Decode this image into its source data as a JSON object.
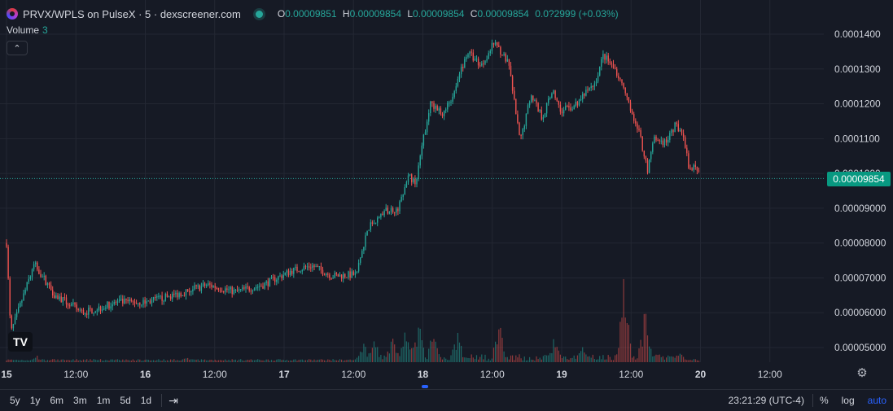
{
  "header": {
    "title": "PRVX/WPLS on PulseX · 5 · dexscreener.com",
    "ohlc": [
      {
        "key": "O",
        "value": "0.00009851"
      },
      {
        "key": "H",
        "value": "0.00009854"
      },
      {
        "key": "L",
        "value": "0.00009854"
      },
      {
        "key": "C",
        "value": "0.00009854"
      }
    ],
    "change": "0.0?2999 (+0.03%)",
    "volume_label": "Volume",
    "volume_value": "3",
    "collapse_glyph": "⌃",
    "status_color": "#26a69a"
  },
  "watermark": "TV",
  "price_tag": "0.00009854",
  "settings_icon": "gear-icon",
  "toolbar": {
    "ranges": [
      "5y",
      "1y",
      "6m",
      "3m",
      "1m",
      "5d",
      "1d"
    ],
    "clock": "23:21:29 (UTC-4)",
    "percent": "%",
    "log": "log",
    "auto": "auto"
  },
  "chart_data": {
    "type": "candlestick",
    "up_color": "#26a69a",
    "down_color": "#ef5350",
    "y_ticks": [
      "0.0001400",
      "0.0001300",
      "0.0001200",
      "0.0001100",
      "0.0001000",
      "0.00009000",
      "0.00008000",
      "0.00007000",
      "0.00006000",
      "0.00005000"
    ],
    "ylim": [
      4.65e-05,
      0.000143
    ],
    "last_price": 9.854e-05,
    "x_ticks": [
      "15",
      "12:00",
      "16",
      "12:00",
      "17",
      "12:00",
      "18",
      "12:00",
      "19",
      "12:00",
      "20",
      "12:00"
    ],
    "price_path": [
      {
        "t": 0.0,
        "p": 8e-05
      },
      {
        "t": 0.03,
        "p": 5.4e-05
      },
      {
        "t": 0.08,
        "p": 6e-05
      },
      {
        "t": 0.2,
        "p": 7.4e-05
      },
      {
        "t": 0.35,
        "p": 6.5e-05
      },
      {
        "t": 0.55,
        "p": 6e-05
      },
      {
        "t": 0.8,
        "p": 6.3e-05
      },
      {
        "t": 1.0,
        "p": 6.3e-05
      },
      {
        "t": 1.2,
        "p": 6.5e-05
      },
      {
        "t": 1.45,
        "p": 6.8e-05
      },
      {
        "t": 1.65,
        "p": 6.6e-05
      },
      {
        "t": 1.85,
        "p": 6.8e-05
      },
      {
        "t": 2.05,
        "p": 7.2e-05
      },
      {
        "t": 2.2,
        "p": 7.35e-05
      },
      {
        "t": 2.35,
        "p": 7.05e-05
      },
      {
        "t": 2.52,
        "p": 7.1e-05
      },
      {
        "t": 2.6,
        "p": 8.4e-05
      },
      {
        "t": 2.72,
        "p": 8.9e-05
      },
      {
        "t": 2.82,
        "p": 9e-05
      },
      {
        "t": 2.9,
        "p": 9.9e-05
      },
      {
        "t": 2.95,
        "p": 9.7e-05
      },
      {
        "t": 3.0,
        "p": 0.000109
      },
      {
        "t": 3.05,
        "p": 0.00012
      },
      {
        "t": 3.15,
        "p": 0.000117
      },
      {
        "t": 3.22,
        "p": 0.000123
      },
      {
        "t": 3.32,
        "p": 0.000135
      },
      {
        "t": 3.42,
        "p": 0.000131
      },
      {
        "t": 3.52,
        "p": 0.000138
      },
      {
        "t": 3.62,
        "p": 0.000131
      },
      {
        "t": 3.7,
        "p": 0.000109
      },
      {
        "t": 3.78,
        "p": 0.000123
      },
      {
        "t": 3.86,
        "p": 0.000116
      },
      {
        "t": 3.93,
        "p": 0.000124
      },
      {
        "t": 4.0,
        "p": 0.000118
      },
      {
        "t": 4.08,
        "p": 0.000119
      },
      {
        "t": 4.15,
        "p": 0.000122
      },
      {
        "t": 4.24,
        "p": 0.000126
      },
      {
        "t": 4.3,
        "p": 0.000134
      },
      {
        "t": 4.4,
        "p": 0.000129
      },
      {
        "t": 4.48,
        "p": 0.00012
      },
      {
        "t": 4.55,
        "p": 0.000113
      },
      {
        "t": 4.62,
        "p": 0.000101
      },
      {
        "t": 4.66,
        "p": 0.00011
      },
      {
        "t": 4.75,
        "p": 0.000109
      },
      {
        "t": 4.82,
        "p": 0.000114
      },
      {
        "t": 4.87,
        "p": 0.000112
      },
      {
        "t": 4.92,
        "p": 0.000101
      },
      {
        "t": 4.97,
        "p": 0.000102
      },
      {
        "t": 5.0,
        "p": 9.85e-05
      }
    ],
    "volume_peaks": [
      {
        "t": 2.57,
        "v": 0.25
      },
      {
        "t": 2.65,
        "v": 0.3
      },
      {
        "t": 2.78,
        "v": 0.35
      },
      {
        "t": 2.88,
        "v": 0.45
      },
      {
        "t": 2.97,
        "v": 0.55
      },
      {
        "t": 3.08,
        "v": 0.42
      },
      {
        "t": 3.25,
        "v": 0.38
      },
      {
        "t": 3.55,
        "v": 0.48
      },
      {
        "t": 3.95,
        "v": 0.32
      },
      {
        "t": 4.15,
        "v": 0.22
      },
      {
        "t": 4.45,
        "v": 1.0
      },
      {
        "t": 4.6,
        "v": 0.62
      },
      {
        "t": 4.85,
        "v": 0.12
      },
      {
        "t": 0.22,
        "v": 0.08
      },
      {
        "t": 1.3,
        "v": 0.06
      }
    ]
  }
}
